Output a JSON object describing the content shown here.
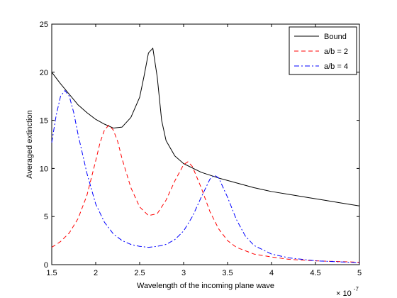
{
  "chart_data": {
    "type": "line",
    "title": "",
    "xlabel": "Wavelength of the incoming plane wave",
    "ylabel": "Averaged extinction",
    "x_exponent_base": "× 10",
    "x_exponent_power": "-7",
    "xlim": [
      1.5,
      5.0
    ],
    "ylim": [
      0,
      25
    ],
    "xticks": [
      1.5,
      2,
      2.5,
      3,
      3.5,
      4,
      4.5,
      5
    ],
    "xtick_labels": [
      "1.5",
      "2",
      "2.5",
      "3",
      "3.5",
      "4",
      "4.5",
      "5"
    ],
    "yticks": [
      0,
      5,
      10,
      15,
      20,
      25
    ],
    "ytick_labels": [
      "0",
      "5",
      "10",
      "15",
      "20",
      "25"
    ],
    "grid": false,
    "legend_position": "top-right",
    "series": [
      {
        "name": "Bound",
        "color": "#000000",
        "style": "solid",
        "x": [
          1.5,
          1.6,
          1.7,
          1.8,
          1.9,
          2.0,
          2.1,
          2.2,
          2.3,
          2.4,
          2.5,
          2.55,
          2.6,
          2.65,
          2.7,
          2.75,
          2.8,
          2.9,
          3.0,
          3.2,
          3.4,
          3.6,
          3.8,
          4.0,
          4.2,
          4.4,
          4.6,
          4.8,
          5.0
        ],
        "y": [
          20.0,
          18.8,
          17.7,
          16.6,
          15.8,
          15.1,
          14.6,
          14.2,
          14.3,
          15.3,
          17.4,
          19.6,
          22.0,
          22.5,
          19.5,
          15.0,
          12.9,
          11.3,
          10.5,
          9.6,
          9.0,
          8.5,
          8.0,
          7.6,
          7.3,
          7.0,
          6.7,
          6.4,
          6.1
        ]
      },
      {
        "name": "a/b = 2",
        "color": "#ff0000",
        "style": "dashed",
        "x": [
          1.5,
          1.6,
          1.7,
          1.8,
          1.9,
          2.0,
          2.05,
          2.1,
          2.15,
          2.2,
          2.25,
          2.3,
          2.4,
          2.5,
          2.6,
          2.7,
          2.8,
          2.9,
          3.0,
          3.05,
          3.1,
          3.2,
          3.3,
          3.4,
          3.5,
          3.6,
          3.8,
          4.0,
          4.2,
          4.5,
          5.0
        ],
        "y": [
          1.8,
          2.4,
          3.3,
          4.8,
          7.2,
          10.8,
          12.7,
          14.0,
          14.5,
          14.0,
          12.8,
          11.0,
          8.0,
          6.0,
          5.1,
          5.3,
          6.7,
          8.7,
          10.4,
          10.7,
          10.2,
          8.0,
          5.5,
          3.7,
          2.5,
          1.8,
          1.1,
          0.8,
          0.55,
          0.4,
          0.25
        ]
      },
      {
        "name": "a/b = 4",
        "color": "#0000ff",
        "style": "dashdot",
        "x": [
          1.5,
          1.55,
          1.6,
          1.65,
          1.7,
          1.75,
          1.8,
          1.9,
          2.0,
          2.1,
          2.2,
          2.3,
          2.4,
          2.5,
          2.6,
          2.7,
          2.8,
          2.9,
          3.0,
          3.1,
          3.2,
          3.3,
          3.35,
          3.4,
          3.5,
          3.6,
          3.7,
          3.8,
          4.0,
          4.2,
          4.5,
          5.0
        ],
        "y": [
          12.7,
          15.5,
          17.5,
          18.1,
          17.5,
          15.8,
          13.5,
          9.5,
          6.3,
          4.4,
          3.2,
          2.5,
          2.1,
          1.9,
          1.8,
          1.9,
          2.1,
          2.6,
          3.5,
          5.0,
          7.0,
          8.9,
          9.3,
          9.0,
          7.0,
          4.7,
          3.0,
          2.0,
          1.1,
          0.7,
          0.4,
          0.2
        ]
      }
    ]
  }
}
